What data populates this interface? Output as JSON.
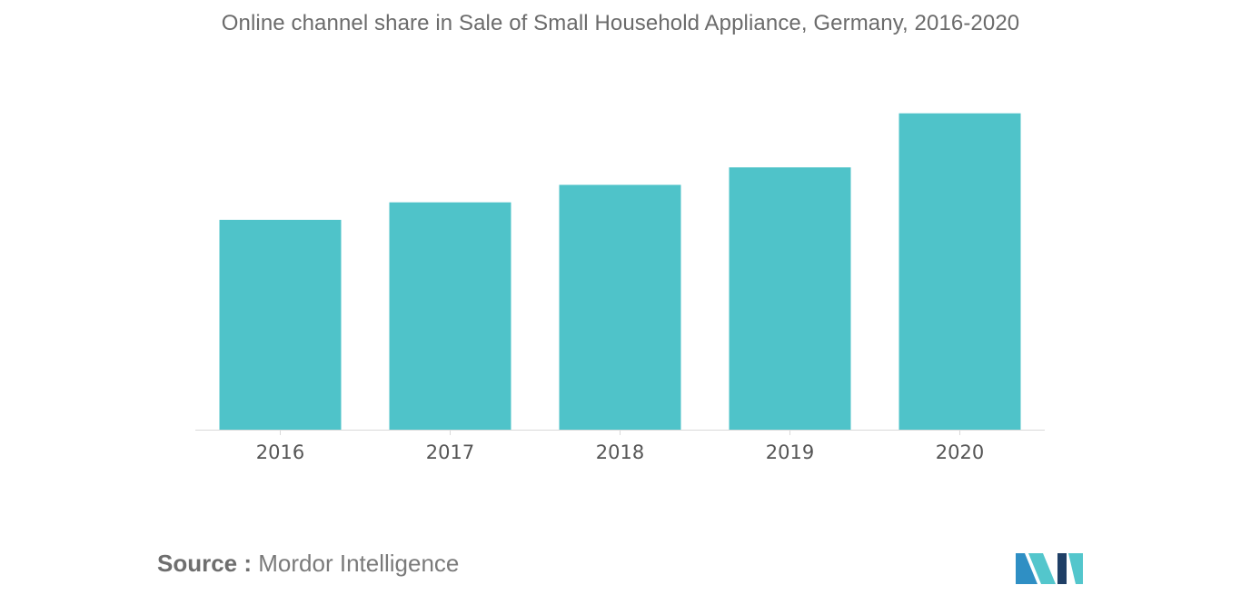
{
  "chart_data": {
    "type": "bar",
    "title": "Online channel share in Sale of Small Household Appliance, Germany, 2016-2020",
    "categories": [
      "2016",
      "2017",
      "2018",
      "2019",
      "2020"
    ],
    "values": [
      66,
      71.5,
      77,
      82.5,
      99.5
    ],
    "ylim": [
      0,
      100
    ],
    "xlabel": "",
    "ylabel": "",
    "grid": false,
    "legend": "none",
    "bar_color": "#4fc3c9",
    "axis_color": "#d9d9d9",
    "tick_label_color": "#555555"
  },
  "source": {
    "label": "Source :",
    "text": "Mordor Intelligence"
  },
  "logo": {
    "icon": "mordor-intelligence-logo-icon",
    "colors": [
      "#1f3f66",
      "#2f8fc4",
      "#53c6cc"
    ]
  }
}
